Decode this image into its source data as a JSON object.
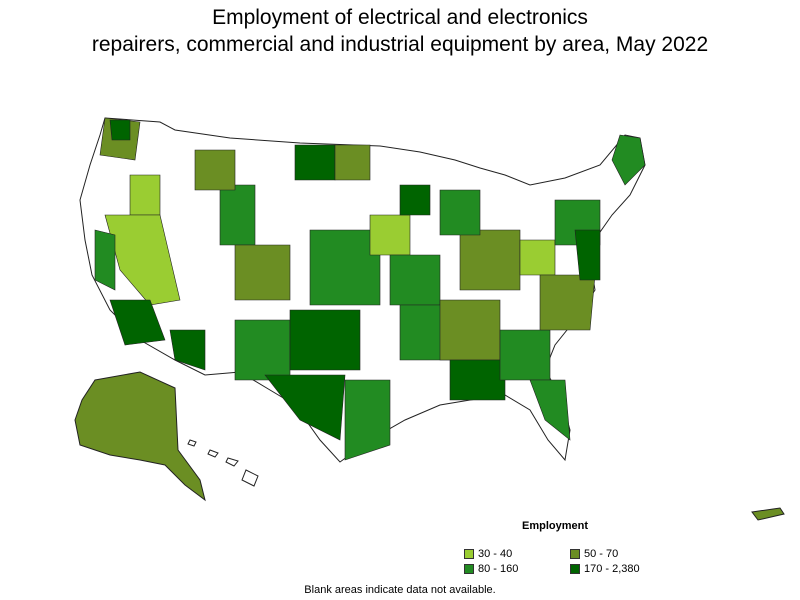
{
  "title": {
    "line1": "Employment of electrical and electronics",
    "line2": "repairers, commercial and industrial equipment by area, May 2022"
  },
  "legend": {
    "title": "Employment",
    "items": [
      {
        "label": "30 - 40",
        "color": "#9acd32"
      },
      {
        "label": "50 - 70",
        "color": "#6b8e23"
      },
      {
        "label": "80 - 160",
        "color": "#228b22"
      },
      {
        "label": "170 - 2,380",
        "color": "#006400"
      }
    ]
  },
  "note": "Blank areas indicate data not available."
}
